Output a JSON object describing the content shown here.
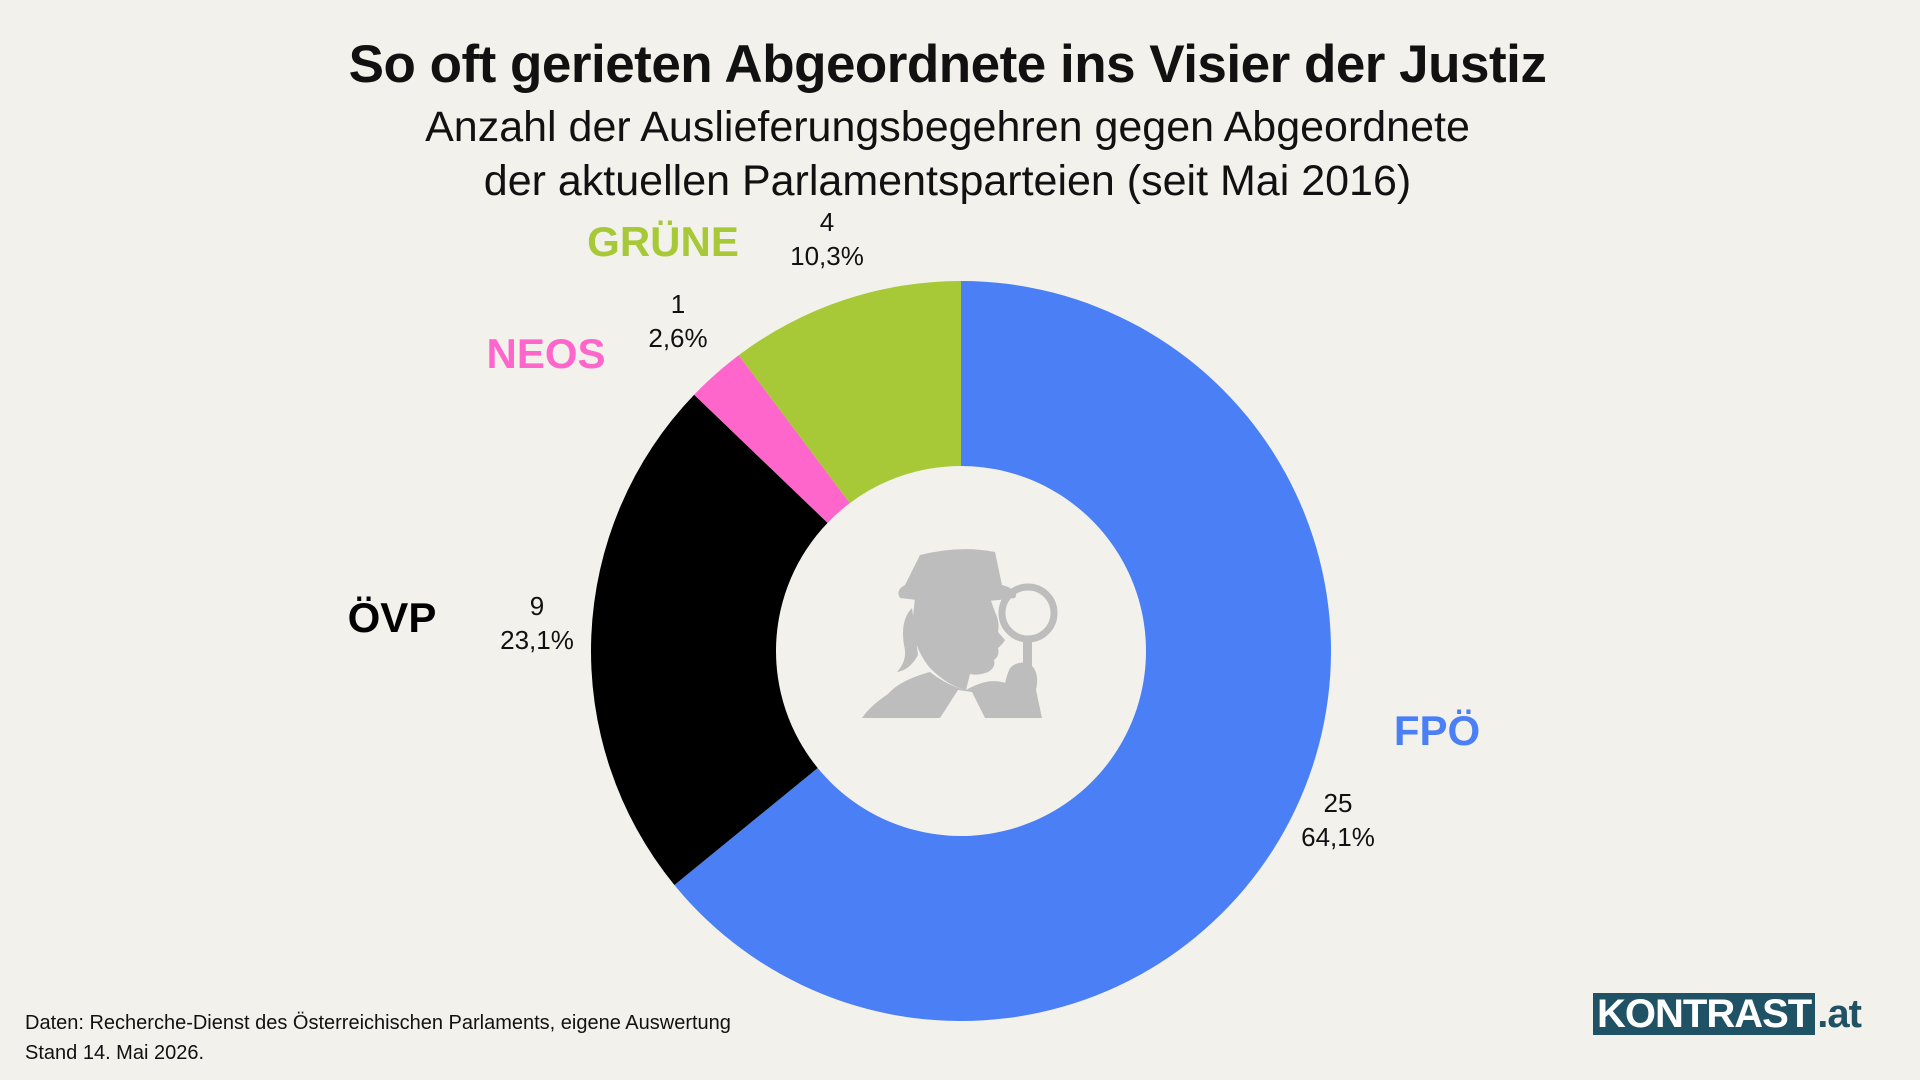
{
  "header": {
    "title": "So oft gerieten Abgeordnete ins Visier der Justiz",
    "subtitle_line1": "Anzahl der Auslieferungsbegehren gegen Abgeordnete",
    "subtitle_line2": "der aktuellen Parlamentsparteien (seit Mai 2016)"
  },
  "chart_data": {
    "type": "pie",
    "variant": "donut",
    "title": "So oft gerieten Abgeordnete ins Visier der Justiz",
    "subtitle": "Anzahl der Auslieferungsbegehren gegen Abgeordnete der aktuellen Parlamentsparteien (seit Mai 2016)",
    "slices": [
      {
        "name": "FPÖ",
        "value": 25,
        "percent_label": "64,1%",
        "color": "#4a7ff5"
      },
      {
        "name": "ÖVP",
        "value": 9,
        "percent_label": "23,1%",
        "color": "#000000"
      },
      {
        "name": "NEOS",
        "value": 1,
        "percent_label": "2,6%",
        "color": "#ff66cc"
      },
      {
        "name": "GRÜNE",
        "value": 4,
        "percent_label": "10,3%",
        "color": "#a8c937"
      }
    ],
    "center_icon": "detective-magnifier-icon"
  },
  "footer": {
    "source_line": "Daten:  Recherche-Dienst des Österreichischen Parlaments, eigene Auswertung",
    "date_line": "Stand 14. Mai 2026."
  },
  "logo": {
    "brand": "KONTRAST",
    "tld": ".at",
    "color": "#1e5264"
  }
}
